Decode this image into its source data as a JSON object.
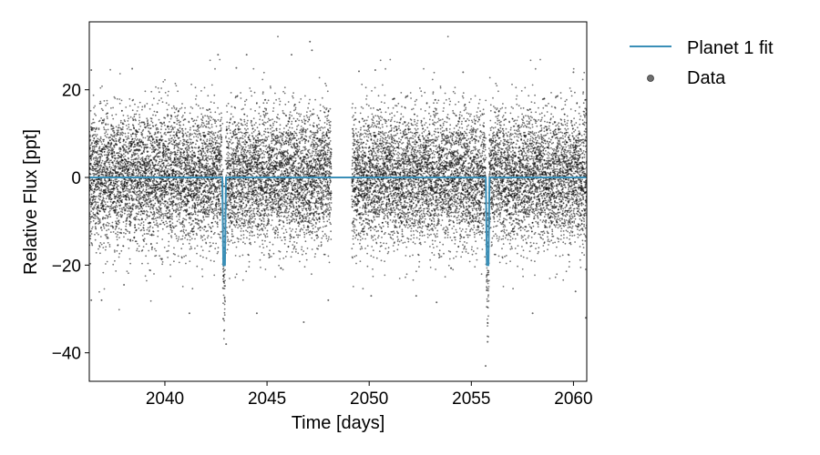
{
  "chart_data": {
    "type": "scatter",
    "title": "",
    "xlabel": "Time [days]",
    "ylabel": "Relative Flux [ppt]",
    "xlim": [
      2036.3,
      2060.65
    ],
    "ylim": [
      -46.5,
      35.5
    ],
    "xticks": [
      2040,
      2045,
      2050,
      2055,
      2060
    ],
    "yticks": [
      -40,
      -20,
      0,
      20
    ],
    "grid": false,
    "legend_position": "outside-top-right",
    "series": [
      {
        "name": "Planet 1 fit",
        "kind": "line",
        "color": "#3a8fb7",
        "baseline": 0,
        "transits": [
          {
            "center": 2042.9,
            "depth": -20.0,
            "duration": 0.18
          },
          {
            "center": 2055.8,
            "depth": -20.0,
            "duration": 0.18
          }
        ],
        "segments": [
          [
            2036.3,
            2060.65
          ]
        ]
      },
      {
        "name": "Data",
        "kind": "points",
        "color": "#000000",
        "mean": 0,
        "scatter_sd": 7.5,
        "cadence_days": 0.0014,
        "coverage": [
          [
            2036.3,
            2048.15
          ],
          [
            2049.15,
            2060.65
          ]
        ],
        "outliers": [
          [
            2047.1,
            31.0
          ],
          [
            2047.2,
            29.0
          ],
          [
            2046.2,
            28.0
          ],
          [
            2042.6,
            28.0
          ],
          [
            2044.0,
            28.0
          ],
          [
            2043.5,
            25.0
          ],
          [
            2036.4,
            24.5
          ],
          [
            2038.4,
            24.8
          ],
          [
            2050.3,
            24.5
          ],
          [
            2049.5,
            24.2
          ],
          [
            2054.6,
            24.0
          ],
          [
            2060.0,
            24.0
          ],
          [
            2043.0,
            -38.0
          ],
          [
            2055.8,
            -37.5
          ],
          [
            2055.7,
            -43.0
          ],
          [
            2046.8,
            -33.0
          ],
          [
            2036.9,
            -28.0
          ],
          [
            2036.4,
            -28.0
          ],
          [
            2060.6,
            -32.0
          ],
          [
            2060.1,
            -26.0
          ],
          [
            2052.3,
            -27.0
          ],
          [
            2044.5,
            -31.0
          ],
          [
            2038.0,
            -24.5
          ],
          [
            2058.0,
            -31.0
          ],
          [
            2048.0,
            -28.0
          ],
          [
            2041.2,
            -31.0
          ],
          [
            2053.3,
            -28.5
          ],
          [
            2050.1,
            -27.0
          ]
        ]
      }
    ]
  }
}
